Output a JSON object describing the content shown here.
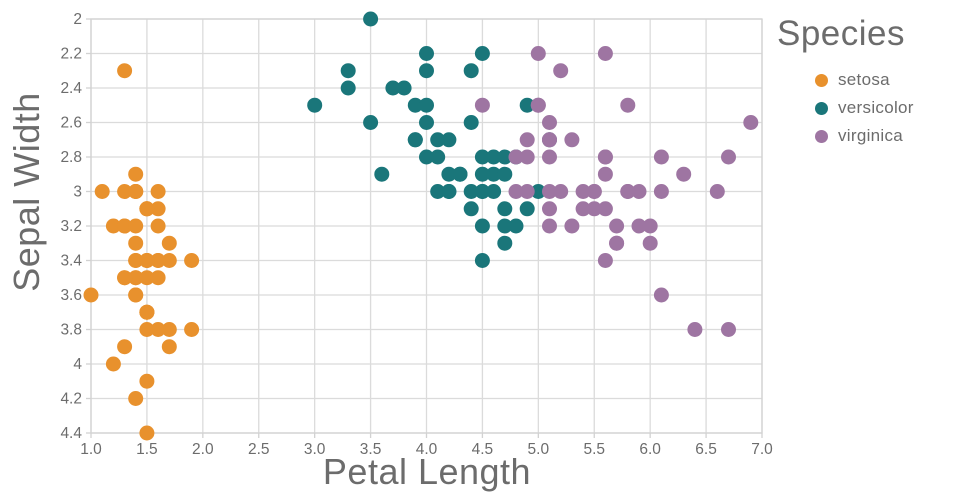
{
  "style": {
    "background": "#FFFFFF",
    "grid_color": "#DBDBDB",
    "axis_line_color": "#D2D2D2",
    "tick_mark_color": "#D2D2D2",
    "text_color": "#6C6C6C"
  },
  "chart_data": {
    "type": "scatter",
    "title": "",
    "xlabel": "Petal Length",
    "ylabel": "Sepal Width",
    "xlim": [
      1.0,
      7.0
    ],
    "ylim": [
      2.0,
      4.4
    ],
    "y_axis_reversed": true,
    "grid": true,
    "marker_diameter_px": 15,
    "x_ticks": [
      "1.0",
      "1.5",
      "2.0",
      "2.5",
      "3.0",
      "3.5",
      "4.0",
      "4.5",
      "5.0",
      "5.5",
      "6.0",
      "6.5",
      "7.0"
    ],
    "x_tick_values": [
      1.0,
      1.5,
      2.0,
      2.5,
      3.0,
      3.5,
      4.0,
      4.5,
      5.0,
      5.5,
      6.0,
      6.5,
      7.0
    ],
    "y_ticks": [
      "2",
      "2.2",
      "2.4",
      "2.6",
      "2.8",
      "3",
      "3.2",
      "3.4",
      "3.6",
      "3.8",
      "4",
      "4.2",
      "4.4"
    ],
    "y_tick_values": [
      2.0,
      2.2,
      2.4,
      2.6,
      2.8,
      3.0,
      3.2,
      3.4,
      3.6,
      3.8,
      4.0,
      4.2,
      4.4
    ],
    "legend": {
      "title": "Species",
      "position": "top-right"
    },
    "series": [
      {
        "name": "setosa",
        "color": "#E8912D",
        "points": [
          [
            1.4,
            3.5
          ],
          [
            1.4,
            3.0
          ],
          [
            1.3,
            3.2
          ],
          [
            1.5,
            3.1
          ],
          [
            1.4,
            3.6
          ],
          [
            1.7,
            3.9
          ],
          [
            1.4,
            3.4
          ],
          [
            1.5,
            3.4
          ],
          [
            1.4,
            2.9
          ],
          [
            1.5,
            3.1
          ],
          [
            1.5,
            3.7
          ],
          [
            1.6,
            3.4
          ],
          [
            1.4,
            3.0
          ],
          [
            1.1,
            3.0
          ],
          [
            1.2,
            4.0
          ],
          [
            1.5,
            4.4
          ],
          [
            1.3,
            3.9
          ],
          [
            1.4,
            3.5
          ],
          [
            1.7,
            3.8
          ],
          [
            1.5,
            3.8
          ],
          [
            1.7,
            3.4
          ],
          [
            1.5,
            3.7
          ],
          [
            1.0,
            3.6
          ],
          [
            1.7,
            3.3
          ],
          [
            1.9,
            3.4
          ],
          [
            1.6,
            3.0
          ],
          [
            1.6,
            3.4
          ],
          [
            1.5,
            3.5
          ],
          [
            1.4,
            3.4
          ],
          [
            1.6,
            3.2
          ],
          [
            1.6,
            3.1
          ],
          [
            1.5,
            3.4
          ],
          [
            1.5,
            4.1
          ],
          [
            1.4,
            4.2
          ],
          [
            1.5,
            3.1
          ],
          [
            1.2,
            3.2
          ],
          [
            1.3,
            3.5
          ],
          [
            1.4,
            3.6
          ],
          [
            1.3,
            3.0
          ],
          [
            1.5,
            3.4
          ],
          [
            1.3,
            3.5
          ],
          [
            1.3,
            2.3
          ],
          [
            1.3,
            3.2
          ],
          [
            1.6,
            3.5
          ],
          [
            1.9,
            3.8
          ],
          [
            1.4,
            3.0
          ],
          [
            1.6,
            3.8
          ],
          [
            1.4,
            3.2
          ],
          [
            1.5,
            3.7
          ],
          [
            1.4,
            3.3
          ]
        ]
      },
      {
        "name": "versicolor",
        "color": "#1A767A",
        "points": [
          [
            4.7,
            3.2
          ],
          [
            4.5,
            3.2
          ],
          [
            4.9,
            3.1
          ],
          [
            4.0,
            2.3
          ],
          [
            4.6,
            2.8
          ],
          [
            4.5,
            2.8
          ],
          [
            4.7,
            3.3
          ],
          [
            3.3,
            2.4
          ],
          [
            4.6,
            2.9
          ],
          [
            3.9,
            2.7
          ],
          [
            3.5,
            2.0
          ],
          [
            4.2,
            3.0
          ],
          [
            4.0,
            2.2
          ],
          [
            4.7,
            2.9
          ],
          [
            3.6,
            2.9
          ],
          [
            4.4,
            3.1
          ],
          [
            4.5,
            3.0
          ],
          [
            4.1,
            2.7
          ],
          [
            4.5,
            2.2
          ],
          [
            3.9,
            2.5
          ],
          [
            4.8,
            3.2
          ],
          [
            4.0,
            2.8
          ],
          [
            4.9,
            2.5
          ],
          [
            4.7,
            2.8
          ],
          [
            4.3,
            2.9
          ],
          [
            4.4,
            3.0
          ],
          [
            4.8,
            2.8
          ],
          [
            5.0,
            3.0
          ],
          [
            4.5,
            2.9
          ],
          [
            3.5,
            2.6
          ],
          [
            3.8,
            2.4
          ],
          [
            3.7,
            2.4
          ],
          [
            3.9,
            2.7
          ],
          [
            5.1,
            2.7
          ],
          [
            4.5,
            3.0
          ],
          [
            4.5,
            3.4
          ],
          [
            4.7,
            3.1
          ],
          [
            4.4,
            2.3
          ],
          [
            4.1,
            3.0
          ],
          [
            4.0,
            2.5
          ],
          [
            4.4,
            2.6
          ],
          [
            4.6,
            3.0
          ],
          [
            4.0,
            2.6
          ],
          [
            3.3,
            2.3
          ],
          [
            4.2,
            2.7
          ],
          [
            4.2,
            3.0
          ],
          [
            4.2,
            2.9
          ],
          [
            4.3,
            2.9
          ],
          [
            3.0,
            2.5
          ],
          [
            4.1,
            2.8
          ]
        ]
      },
      {
        "name": "virginica",
        "color": "#9E75A2",
        "points": [
          [
            6.0,
            3.3
          ],
          [
            5.1,
            2.7
          ],
          [
            5.9,
            3.0
          ],
          [
            5.6,
            2.9
          ],
          [
            5.8,
            3.0
          ],
          [
            6.6,
            3.0
          ],
          [
            4.5,
            2.5
          ],
          [
            6.3,
            2.9
          ],
          [
            5.8,
            2.5
          ],
          [
            6.1,
            3.6
          ],
          [
            5.1,
            3.2
          ],
          [
            5.3,
            2.7
          ],
          [
            5.5,
            3.0
          ],
          [
            5.0,
            2.5
          ],
          [
            5.1,
            2.8
          ],
          [
            5.3,
            3.2
          ],
          [
            5.5,
            3.0
          ],
          [
            6.7,
            3.8
          ],
          [
            6.9,
            2.6
          ],
          [
            5.0,
            2.2
          ],
          [
            5.7,
            3.2
          ],
          [
            4.9,
            2.8
          ],
          [
            6.7,
            2.8
          ],
          [
            4.9,
            2.7
          ],
          [
            5.7,
            3.3
          ],
          [
            6.0,
            3.2
          ],
          [
            4.8,
            2.8
          ],
          [
            4.9,
            3.0
          ],
          [
            5.6,
            2.8
          ],
          [
            5.8,
            3.0
          ],
          [
            6.1,
            2.8
          ],
          [
            6.4,
            3.8
          ],
          [
            5.6,
            2.8
          ],
          [
            5.1,
            2.6
          ],
          [
            5.6,
            2.2
          ],
          [
            6.1,
            3.0
          ],
          [
            5.6,
            3.4
          ],
          [
            5.5,
            3.1
          ],
          [
            4.8,
            3.0
          ],
          [
            5.4,
            3.1
          ],
          [
            5.6,
            3.1
          ],
          [
            5.1,
            3.1
          ],
          [
            5.1,
            2.7
          ],
          [
            5.9,
            3.2
          ],
          [
            5.7,
            3.3
          ],
          [
            5.2,
            3.0
          ],
          [
            5.0,
            2.5
          ],
          [
            5.2,
            2.3
          ],
          [
            5.4,
            3.0
          ],
          [
            5.1,
            3.0
          ]
        ]
      }
    ]
  }
}
